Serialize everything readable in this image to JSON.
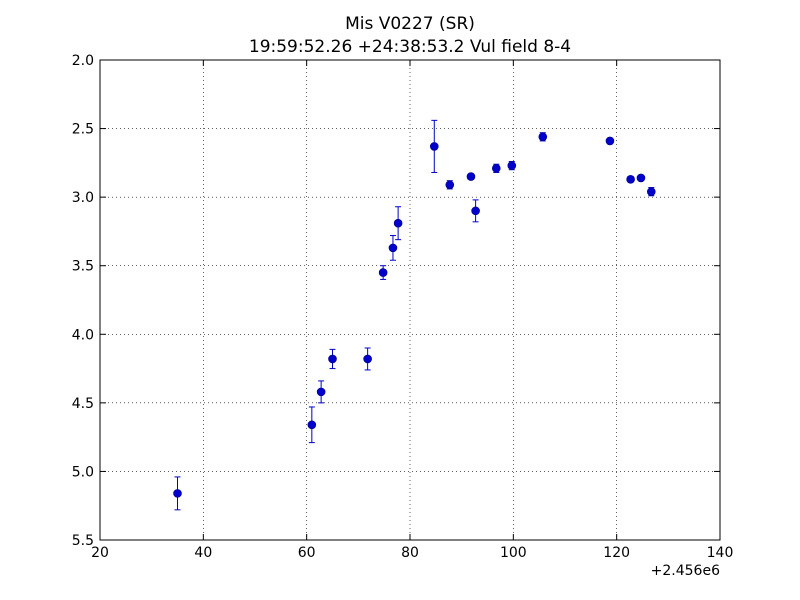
{
  "chart_data": {
    "type": "scatter",
    "title": "Mis V0227 (SR)",
    "subtitle": "19:59:52.26 +24:38:53.2 Vul field 8-4",
    "xlabel": "",
    "ylabel": "",
    "x_offset_label": "+2.456e6",
    "xlim": [
      20,
      140
    ],
    "ylim": [
      5.5,
      2.0
    ],
    "y_inverted": true,
    "grid": true,
    "xticks": [
      20,
      40,
      60,
      80,
      100,
      120,
      140
    ],
    "xtick_labels": [
      "20",
      "40",
      "60",
      "80",
      "100",
      "120",
      "140"
    ],
    "yticks": [
      2.0,
      2.5,
      3.0,
      3.5,
      4.0,
      4.5,
      5.0,
      5.5
    ],
    "ytick_labels": [
      "2.0",
      "2.5",
      "3.0",
      "3.5",
      "4.0",
      "4.5",
      "5.0",
      "5.5"
    ],
    "series": [
      {
        "color": "#0000cc",
        "points": [
          {
            "x": 35.0,
            "y": 5.16,
            "err": 0.12
          },
          {
            "x": 61.0,
            "y": 4.66,
            "err": 0.13
          },
          {
            "x": 62.8,
            "y": 4.42,
            "err": 0.08
          },
          {
            "x": 65.0,
            "y": 4.18,
            "err": 0.07
          },
          {
            "x": 71.8,
            "y": 4.18,
            "err": 0.08
          },
          {
            "x": 74.8,
            "y": 3.55,
            "err": 0.05
          },
          {
            "x": 76.7,
            "y": 3.37,
            "err": 0.09
          },
          {
            "x": 77.7,
            "y": 3.19,
            "err": 0.12
          },
          {
            "x": 84.7,
            "y": 2.63,
            "err": 0.19
          },
          {
            "x": 87.7,
            "y": 2.91,
            "err": 0.03
          },
          {
            "x": 91.8,
            "y": 2.85,
            "err": 0.02
          },
          {
            "x": 92.7,
            "y": 3.1,
            "err": 0.08
          },
          {
            "x": 96.7,
            "y": 2.79,
            "err": 0.03
          },
          {
            "x": 99.7,
            "y": 2.77,
            "err": 0.03
          },
          {
            "x": 105.7,
            "y": 2.56,
            "err": 0.03
          },
          {
            "x": 118.7,
            "y": 2.59,
            "err": 0.02
          },
          {
            "x": 122.7,
            "y": 2.87,
            "err": 0.02
          },
          {
            "x": 124.7,
            "y": 2.86,
            "err": 0.02
          },
          {
            "x": 126.7,
            "y": 2.96,
            "err": 0.03
          }
        ]
      }
    ]
  }
}
